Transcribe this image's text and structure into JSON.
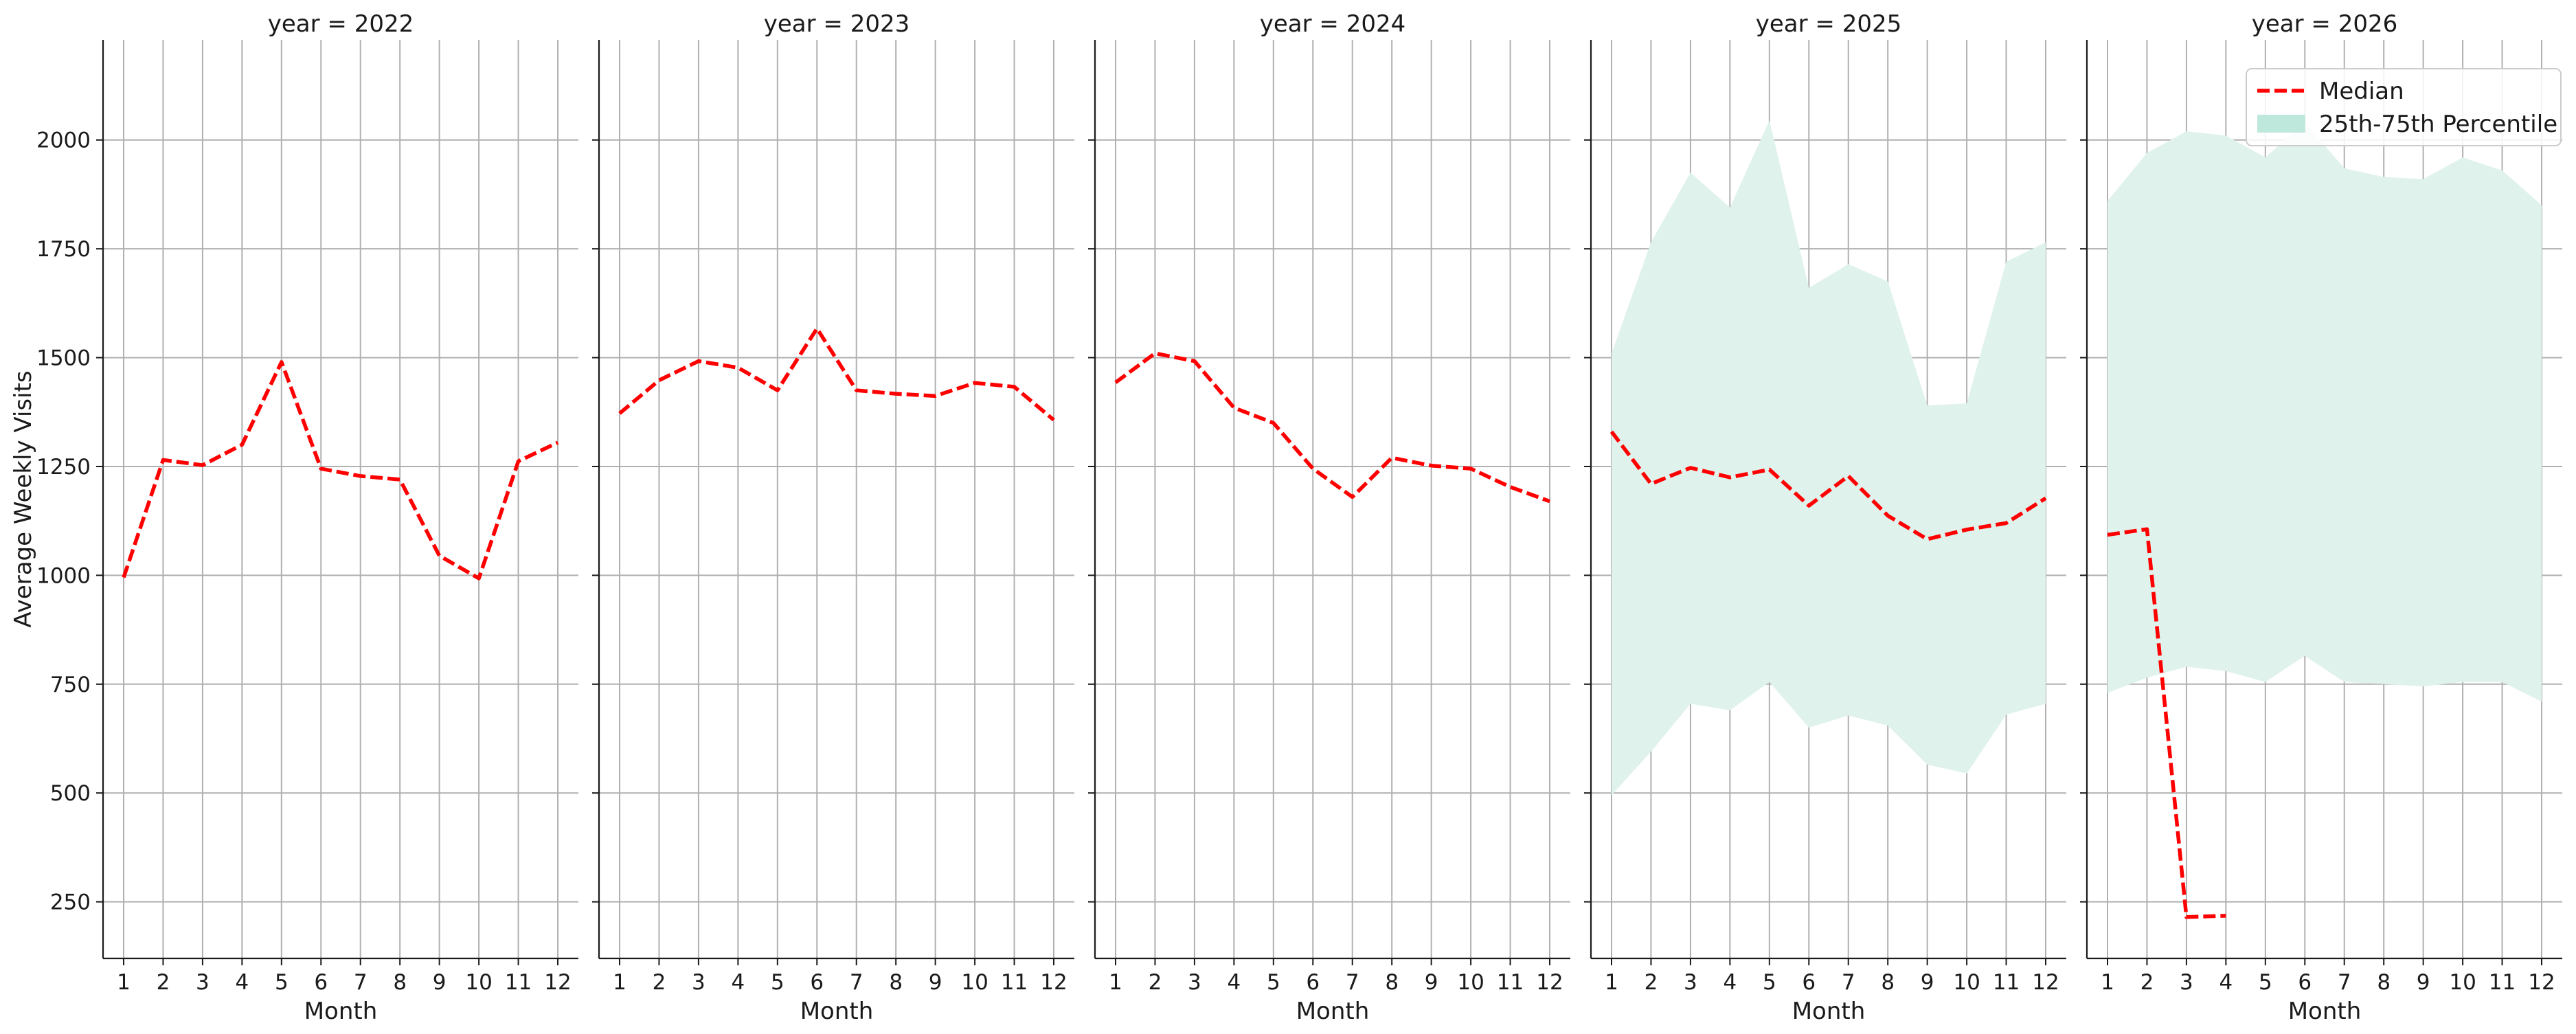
{
  "chart_data": {
    "type": "line",
    "ylabel": "Average Weekly Visits",
    "xlabel": "Month",
    "ylim": [
      120,
      2230
    ],
    "yticks": [
      250,
      500,
      750,
      1000,
      1250,
      1500,
      1750,
      2000
    ],
    "xticks": [
      1,
      2,
      3,
      4,
      5,
      6,
      7,
      8,
      9,
      10,
      11,
      12
    ],
    "grid": true,
    "shared_y": true,
    "legend": {
      "location": "top-right",
      "panel_index": 4,
      "entries": [
        {
          "label": "Median",
          "kind": "line",
          "color": "#ff0000",
          "dashed": true
        },
        {
          "label": "25th-75th Percentile",
          "kind": "area",
          "color": "#bfe8dc"
        }
      ]
    },
    "colors": {
      "median": "#ff0000",
      "band": "#dff2ec"
    },
    "panels": [
      {
        "title": "year = 2022",
        "x": [
          1,
          2,
          3,
          4,
          5,
          6,
          7,
          8,
          9,
          10,
          11,
          12
        ],
        "median": [
          995,
          1265,
          1253,
          1300,
          1490,
          1245,
          1228,
          1220,
          1045,
          993,
          1262,
          1305
        ],
        "band": null
      },
      {
        "title": "year = 2023",
        "x": [
          1,
          2,
          3,
          4,
          5,
          6,
          7,
          8,
          9,
          10,
          11,
          12
        ],
        "median": [
          1372,
          1448,
          1492,
          1477,
          1425,
          1567,
          1425,
          1417,
          1412,
          1442,
          1433,
          1357
        ],
        "band": null
      },
      {
        "title": "year = 2024",
        "x": [
          1,
          2,
          3,
          4,
          5,
          6,
          7,
          8,
          9,
          10,
          11,
          12
        ],
        "median": [
          1443,
          1510,
          1492,
          1385,
          1350,
          1245,
          1180,
          1270,
          1252,
          1245,
          1203,
          1170
        ],
        "band": null
      },
      {
        "title": "year = 2025",
        "x": [
          1,
          2,
          3,
          4,
          5,
          6,
          7,
          8,
          9,
          10,
          11,
          12
        ],
        "median": [
          1330,
          1210,
          1247,
          1225,
          1243,
          1160,
          1228,
          1137,
          1083,
          1105,
          1120,
          1177
        ],
        "band": {
          "low": [
            495,
            595,
            705,
            690,
            755,
            650,
            678,
            655,
            565,
            545,
            680,
            705
          ],
          "high": [
            1510,
            1765,
            1925,
            1845,
            2045,
            1660,
            1715,
            1675,
            1390,
            1395,
            1720,
            1765
          ]
        }
      },
      {
        "title": "year = 2026",
        "x": [
          1,
          2,
          3,
          4,
          5,
          6,
          7,
          8,
          9,
          10,
          11,
          12
        ],
        "median": [
          1093,
          1106,
          215,
          218,
          null,
          null,
          null,
          null,
          null,
          null,
          null,
          null
        ],
        "band": {
          "low": [
            730,
            765,
            790,
            780,
            755,
            815,
            755,
            750,
            745,
            755,
            755,
            710
          ],
          "high": [
            1860,
            1970,
            2020,
            2010,
            1960,
            2040,
            1935,
            1915,
            1910,
            1960,
            1930,
            1850
          ]
        }
      }
    ]
  }
}
